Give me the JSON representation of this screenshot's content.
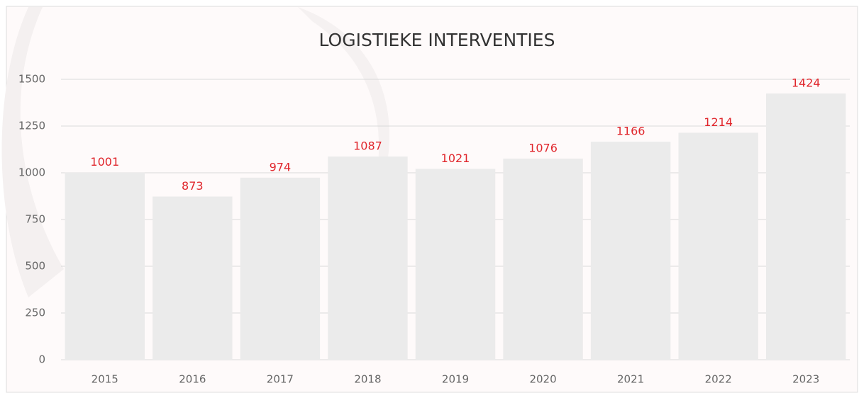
{
  "chart_data": {
    "type": "bar",
    "title": "LOGISTIEKE INTERVENTIES",
    "categories": [
      "2015",
      "2016",
      "2017",
      "2018",
      "2019",
      "2020",
      "2021",
      "2022",
      "2023"
    ],
    "values": [
      1001,
      873,
      974,
      1087,
      1021,
      1076,
      1166,
      1214,
      1424
    ],
    "color": "#ebebeb",
    "label_color": "#e0262c",
    "ylim": [
      0,
      1500
    ],
    "yticks": [
      0,
      250,
      500,
      750,
      1000,
      1250,
      1500
    ],
    "grid": true
  }
}
